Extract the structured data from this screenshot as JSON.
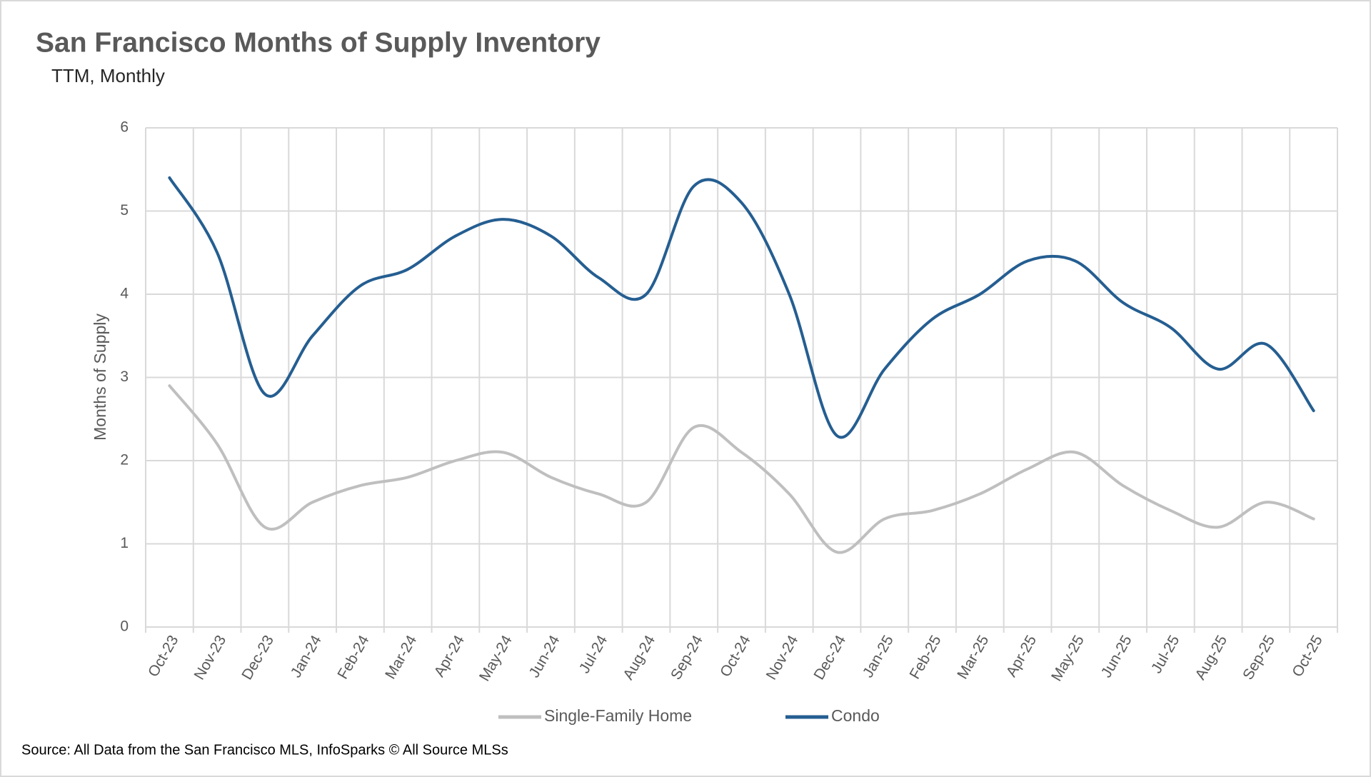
{
  "chart_data": {
    "type": "line",
    "title": "San Francisco Months of Supply Inventory",
    "subtitle": "TTM, Monthly",
    "y_label": "Months of Supply",
    "source": "Source: All Data from the San Francisco MLS, InfoSparks © All Source MLSs",
    "categories": [
      "Oct-23",
      "Nov-23",
      "Dec-23",
      "Jan-24",
      "Feb-24",
      "Mar-24",
      "Apr-24",
      "May-24",
      "Jun-24",
      "Jul-24",
      "Aug-24",
      "Sep-24",
      "Oct-24",
      "Nov-24",
      "Dec-24",
      "Jan-25",
      "Feb-25",
      "Mar-25",
      "Apr-25",
      "May-25",
      "Jun-25",
      "Jul-25",
      "Aug-25",
      "Sep-25",
      "Oct-25"
    ],
    "series": [
      {
        "name": "Single-Family Home",
        "color": "#bfbfbf",
        "values": [
          2.9,
          2.2,
          1.2,
          1.5,
          1.7,
          1.8,
          2.0,
          2.1,
          1.8,
          1.6,
          1.5,
          2.4,
          2.1,
          1.6,
          0.9,
          1.3,
          1.4,
          1.6,
          1.9,
          2.1,
          1.7,
          1.4,
          1.2,
          1.5,
          1.3
        ]
      },
      {
        "name": "Condo",
        "color": "#255e91",
        "values": [
          5.4,
          4.5,
          2.8,
          3.5,
          4.1,
          4.3,
          4.7,
          4.9,
          4.7,
          4.2,
          4.0,
          5.3,
          5.1,
          4.0,
          2.3,
          3.1,
          3.7,
          4.0,
          4.4,
          4.4,
          3.9,
          3.6,
          3.1,
          3.4,
          2.6
        ]
      }
    ],
    "ylim": [
      0,
      6
    ],
    "yticks": [
      0,
      1,
      2,
      3,
      4,
      5,
      6
    ],
    "grid": true,
    "smooth": true,
    "legend": "bottom"
  }
}
